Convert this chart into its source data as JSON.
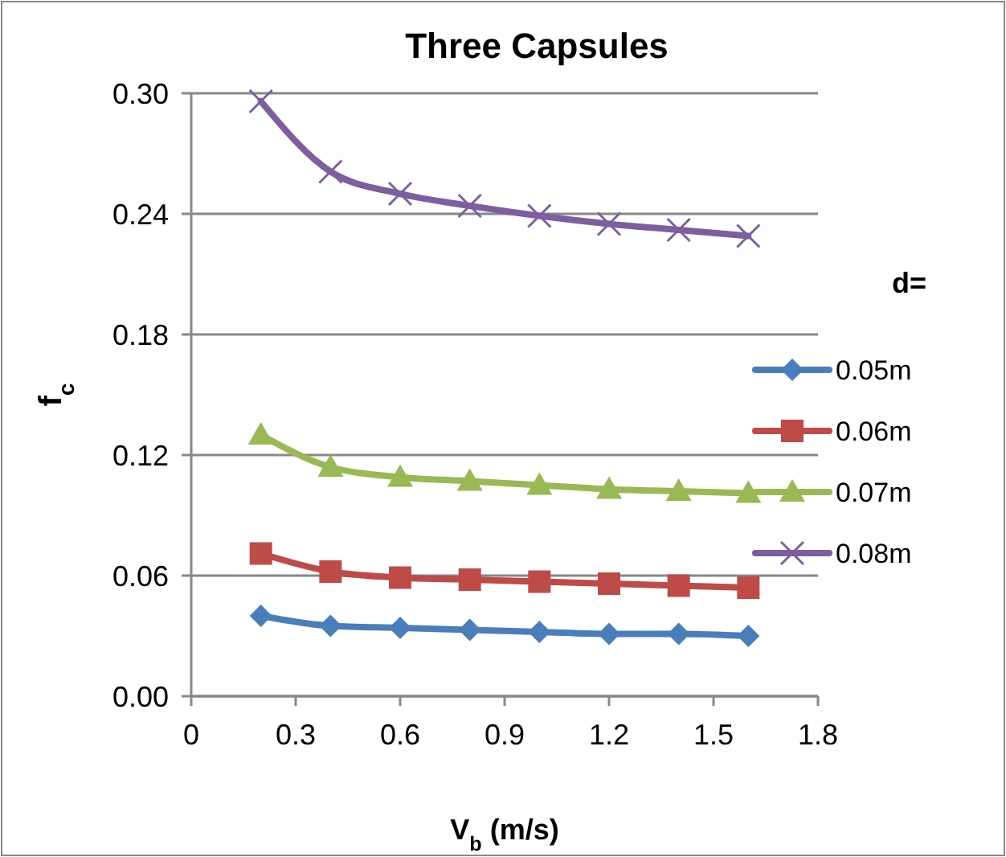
{
  "chart_data": {
    "type": "line",
    "title": "Three Capsules",
    "xlabel": "V$_{b}$ (m/s)",
    "ylabel": "f$_{c}$",
    "legend_title": "d=",
    "x": [
      0.2,
      0.4,
      0.6,
      0.8,
      1.0,
      1.2,
      1.4,
      1.6
    ],
    "xlim": [
      0,
      1.8
    ],
    "xticks": [
      0,
      0.3,
      0.6,
      0.9,
      1.2,
      1.5,
      1.8
    ],
    "ylim": [
      0,
      0.3
    ],
    "yticks": [
      {
        "value": 0,
        "label": "0.00"
      },
      {
        "value": 0.06,
        "label": "0.06"
      },
      {
        "value": 0.12,
        "label": "0.12"
      },
      {
        "value": 0.18,
        "label": "0.18"
      },
      {
        "value": 0.24,
        "label": "0.24"
      },
      {
        "value": 0.3,
        "label": "0.30"
      }
    ],
    "grid": "y",
    "legend": "right",
    "line_style": "solid",
    "series": [
      {
        "name": "0.05m",
        "color": "#4a7ebb",
        "marker": "diamond",
        "values": [
          0.04,
          0.035,
          0.034,
          0.033,
          0.032,
          0.031,
          0.031,
          0.03
        ]
      },
      {
        "name": "0.06m",
        "color": "#be4b48",
        "marker": "square",
        "values": [
          0.071,
          0.062,
          0.059,
          0.058,
          0.057,
          0.056,
          0.055,
          0.054
        ]
      },
      {
        "name": "0.07m",
        "color": "#98b954",
        "marker": "triangle",
        "values": [
          0.13,
          0.114,
          0.109,
          0.107,
          0.105,
          0.103,
          0.102,
          0.101
        ]
      },
      {
        "name": "0.08m",
        "color": "#7d5fa0",
        "marker": "cross",
        "values": [
          0.296,
          0.261,
          0.25,
          0.244,
          0.239,
          0.235,
          0.232,
          0.229
        ]
      }
    ]
  }
}
